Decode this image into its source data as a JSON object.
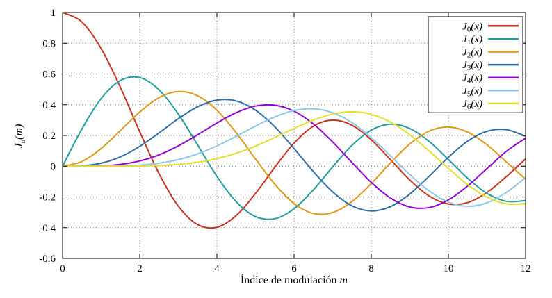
{
  "figure": {
    "background": "#ffffff"
  },
  "chart_data": {
    "type": "line",
    "title": "",
    "xlabel": "Índice de modulación",
    "xlabel_var": "m",
    "ylabel_base": "J",
    "ylabel_sub": "n",
    "ylabel_arg": "(m)",
    "xlim": [
      0,
      12
    ],
    "ylim": [
      -0.6,
      1
    ],
    "grid": "dotted",
    "legend_position": "top-right",
    "x_tick_values": [
      0,
      2,
      4,
      6,
      8,
      10,
      12
    ],
    "x_tick_labels": [
      "0",
      "2",
      "4",
      "6",
      "8",
      "10",
      "12"
    ],
    "y_tick_values": [
      -0.6,
      -0.4,
      -0.2,
      0,
      0.2,
      0.4,
      0.6,
      0.8,
      1
    ],
    "y_tick_labels": [
      "-0.6",
      "-0.4",
      "-0.2",
      "0",
      "0.2",
      "0.4",
      "0.6",
      "0.8",
      "1"
    ],
    "x": [
      0,
      0.5,
      1,
      1.5,
      2,
      2.5,
      3,
      3.5,
      4,
      4.5,
      5,
      5.5,
      6,
      6.5,
      7,
      7.5,
      8,
      8.5,
      9,
      9.5,
      10,
      10.5,
      11,
      11.5,
      12
    ],
    "series": [
      {
        "order": 0,
        "label": "J_0(x)",
        "label_base": "J",
        "label_sub": "0",
        "label_arg": "(x)",
        "color": "#c9301f",
        "values": [
          1.0,
          0.9385,
          0.7652,
          0.5118,
          0.2239,
          -0.0484,
          -0.2601,
          -0.3801,
          -0.3971,
          -0.3205,
          -0.1776,
          -0.0068,
          0.1506,
          0.2601,
          0.3001,
          0.2663,
          0.1717,
          0.0419,
          -0.0903,
          -0.1939,
          -0.2459,
          -0.2366,
          -0.1712,
          -0.0677,
          0.0477
        ]
      },
      {
        "order": 1,
        "label": "J_1(x)",
        "label_base": "J",
        "label_sub": "1",
        "label_arg": "(x)",
        "color": "#1f9c9c",
        "values": [
          0,
          0.2423,
          0.4401,
          0.5579,
          0.5767,
          0.4971,
          0.3391,
          0.1374,
          -0.066,
          -0.2311,
          -0.3276,
          -0.3414,
          -0.2767,
          -0.1538,
          -0.0047,
          0.1352,
          0.2346,
          0.2731,
          0.2453,
          0.1613,
          0.0435,
          -0.0789,
          -0.1768,
          -0.2284,
          -0.2234
        ]
      },
      {
        "order": 2,
        "label": "J_2(x)",
        "label_base": "J",
        "label_sub": "2",
        "label_arg": "(x)",
        "color": "#de9717",
        "values": [
          0,
          0.0306,
          0.1149,
          0.2321,
          0.3528,
          0.4461,
          0.4861,
          0.4586,
          0.3641,
          0.2178,
          0.0466,
          -0.1173,
          -0.2429,
          -0.3074,
          -0.3014,
          -0.2303,
          -0.113,
          0.0223,
          0.1448,
          0.2279,
          0.2546,
          0.2216,
          0.139,
          0.0279,
          -0.0849
        ]
      },
      {
        "order": 3,
        "label": "J_3(x)",
        "label_base": "J",
        "label_sub": "3",
        "label_arg": "(x)",
        "color": "#2e6da4",
        "values": [
          0,
          0.0026,
          0.0196,
          0.061,
          0.1289,
          0.2166,
          0.3091,
          0.3868,
          0.4302,
          0.4247,
          0.3648,
          0.2561,
          0.1148,
          -0.0353,
          -0.1676,
          -0.2581,
          -0.2911,
          -0.2626,
          -0.1809,
          -0.0653,
          0.0584,
          0.1633,
          0.2273,
          0.2381,
          0.1951
        ]
      },
      {
        "order": 4,
        "label": "J_4(x)",
        "label_base": "J",
        "label_sub": "4",
        "label_arg": "(x)",
        "color": "#9400d3",
        "values": [
          0,
          0.0002,
          0.0025,
          0.0118,
          0.034,
          0.0738,
          0.132,
          0.2044,
          0.2811,
          0.3484,
          0.3912,
          0.3966,
          0.3576,
          0.2748,
          0.1578,
          0.0238,
          -0.1054,
          -0.2077,
          -0.2655,
          -0.2692,
          -0.2196,
          -0.1283,
          -0.015,
          0.0963,
          0.1825
        ]
      },
      {
        "order": 5,
        "label": "J_5(x)",
        "label_base": "J",
        "label_sub": "5",
        "label_arg": "(x)",
        "color": "#8ec7e8",
        "values": [
          0,
          0.0,
          0.0002,
          0.0018,
          0.007,
          0.0195,
          0.043,
          0.0804,
          0.1321,
          0.1947,
          0.2611,
          0.3209,
          0.3621,
          0.3736,
          0.3479,
          0.2835,
          0.1858,
          0.0671,
          -0.055,
          -0.1613,
          -0.2341,
          -0.2611,
          -0.2383,
          -0.1711,
          -0.0735
        ]
      },
      {
        "order": 6,
        "label": "J_6(x)",
        "label_base": "J",
        "label_sub": "6",
        "label_arg": "(x)",
        "color": "#e3df2e",
        "values": [
          0,
          0.0,
          0.0,
          0.0002,
          0.0012,
          0.0042,
          0.0114,
          0.0254,
          0.0491,
          0.0843,
          0.131,
          0.1868,
          0.2458,
          0.2999,
          0.3392,
          0.3541,
          0.3376,
          0.2867,
          0.2043,
          0.0993,
          -0.0145,
          -0.1203,
          -0.2016,
          -0.2451,
          -0.2437
        ]
      }
    ]
  }
}
